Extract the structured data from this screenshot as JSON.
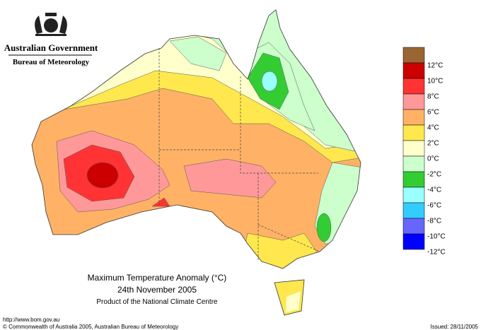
{
  "header": {
    "government": "Australian Government",
    "agency": "Bureau of Meteorology"
  },
  "map": {
    "title": "Maximum Temperature Anomaly (°C)",
    "date": "24th November 2005",
    "subtitle": "Product of the National Climate Centre"
  },
  "legend": {
    "items": [
      {
        "color": "#996633"
      },
      {
        "label": "12°C",
        "color": "#cc0000"
      },
      {
        "label": "10°C",
        "color": "#ff3333"
      },
      {
        "label": "8°C",
        "color": "#ff9999"
      },
      {
        "label": "6°C",
        "color": "#ffb266"
      },
      {
        "label": "4°C",
        "color": "#ffe84d"
      },
      {
        "label": "2°C",
        "color": "#ffffcc"
      },
      {
        "label": "0°C",
        "color": "#ccffcc"
      },
      {
        "label": "-2°C",
        "color": "#33cc33"
      },
      {
        "label": "-4°C",
        "color": "#99ffff"
      },
      {
        "label": "-6°C",
        "color": "#33ccff"
      },
      {
        "label": "-8°C",
        "color": "#6666ff"
      },
      {
        "label": "-10°C",
        "color": "#0000ff"
      },
      {
        "label": "-12°C"
      }
    ]
  },
  "footer": {
    "url": "http://www.bom.gov.au",
    "copyright": "© Commonwealth of Australia 2005, Australian Bureau of Meteorology",
    "issued": "Issued: 28/11/2005"
  }
}
